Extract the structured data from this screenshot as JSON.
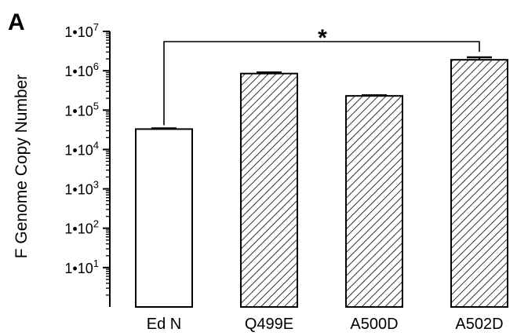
{
  "panel_label": "A",
  "chart_data": {
    "type": "bar",
    "title": "",
    "xlabel": "",
    "ylabel": "F Genome Copy Number",
    "yscale": "log",
    "ylim": [
      1,
      10000000
    ],
    "grid": false,
    "categories": [
      "Ed N",
      "Q499E",
      "A500D",
      "A502D"
    ],
    "values": [
      33000,
      850000,
      230000,
      1900000
    ],
    "error_plus": [
      1500,
      60000,
      8000,
      300000
    ],
    "fill_patterns": [
      "none",
      "diagonal-hatch",
      "diagonal-hatch",
      "diagonal-hatch"
    ],
    "y_ticks": [
      {
        "value": 10,
        "base": "1•10",
        "exp": "1"
      },
      {
        "value": 100,
        "base": "1•10",
        "exp": "2"
      },
      {
        "value": 1000,
        "base": "1•10",
        "exp": "3"
      },
      {
        "value": 10000,
        "base": "1•10",
        "exp": "4"
      },
      {
        "value": 100000,
        "base": "1•10",
        "exp": "5"
      },
      {
        "value": 1000000,
        "base": "1•10",
        "exp": "6"
      },
      {
        "value": 10000000,
        "base": "1•10",
        "exp": "7"
      }
    ],
    "annotations": [
      {
        "type": "significance-bracket",
        "from": "Ed N",
        "to": "A502D",
        "label": "*"
      }
    ]
  },
  "colors": {
    "ink": "#000000",
    "bar_fill": "#ffffff",
    "hatch": "#000000"
  }
}
